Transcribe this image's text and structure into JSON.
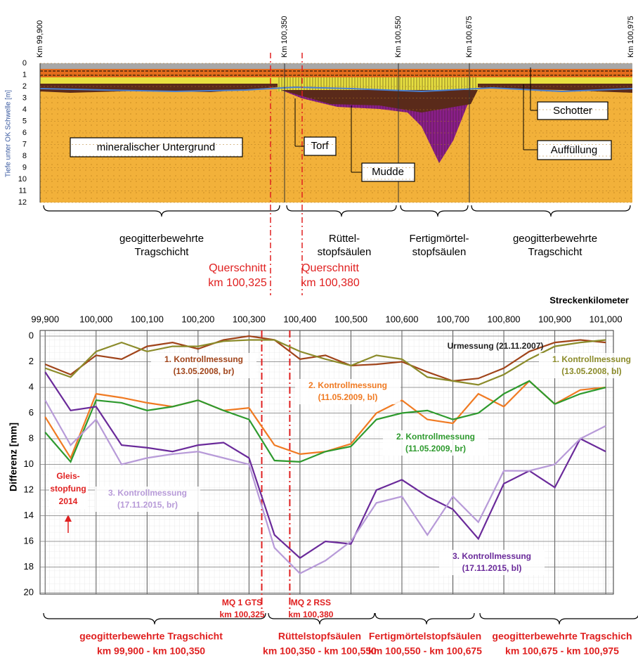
{
  "profile": {
    "km_labels": [
      "Km 99,900",
      "Km 100,350",
      "Km 100,550",
      "Km 100,675",
      "Km 100,975"
    ],
    "y_title": "Tiefe unter OK Schwelle [m]",
    "depth_ticks": [
      0,
      1,
      2,
      3,
      4,
      5,
      6,
      7,
      8,
      9,
      10,
      11,
      12
    ],
    "layers": [
      "mineralischer Untergrund",
      "Torf",
      "Mudde",
      "Schotter",
      "Auffüllung"
    ],
    "sections": [
      [
        "geogitterbewehrte",
        "Tragschicht"
      ],
      [
        "Rüttel-",
        "stopfsäulen"
      ],
      [
        "Fertigmörtel-",
        "stopfsäulen"
      ],
      [
        "geogitterbewehrte",
        "Tragschicht"
      ]
    ],
    "cross_sections": [
      [
        "Querschnitt",
        "km 100,325"
      ],
      [
        "Querschnitt",
        "km 100,380"
      ]
    ]
  },
  "chart_data": {
    "type": "line",
    "x_title": "Streckenkilometer",
    "y_title": "Differenz [mm]",
    "x": [
      99.9,
      99.95,
      100.0,
      100.05,
      100.1,
      100.15,
      100.2,
      100.25,
      100.3,
      100.35,
      100.4,
      100.45,
      100.5,
      100.55,
      100.6,
      100.65,
      100.7,
      100.75,
      100.8,
      100.85,
      100.9,
      100.95,
      101.0
    ],
    "xlim": [
      99.89,
      101.015
    ],
    "xticks": [
      {
        "value": 99.9,
        "label": "99,900"
      },
      {
        "value": 100.0,
        "label": "100,000"
      },
      {
        "value": 100.1,
        "label": "100,100"
      },
      {
        "value": 100.2,
        "label": "100,200"
      },
      {
        "value": 100.3,
        "label": "100,300"
      },
      {
        "value": 100.4,
        "label": "100,400"
      },
      {
        "value": 100.5,
        "label": "100,500"
      },
      {
        "value": 100.6,
        "label": "100,600"
      },
      {
        "value": 100.7,
        "label": "100,700"
      },
      {
        "value": 100.8,
        "label": "100,800"
      },
      {
        "value": 100.9,
        "label": "100,900"
      },
      {
        "value": 101.0,
        "label": "101,000"
      }
    ],
    "ylim": [
      0,
      20
    ],
    "yticks": [
      0,
      2,
      4,
      6,
      8,
      10,
      12,
      14,
      16,
      18,
      20
    ],
    "y_inverted": true,
    "grid": true,
    "series": [
      {
        "label": [
          "1. Kontrollmessung",
          "(13.05.2008, br)"
        ],
        "color": "#a0441a",
        "values": [
          2.2,
          3.0,
          1.5,
          1.8,
          0.8,
          0.5,
          1.0,
          0.3,
          0,
          0.3,
          1.8,
          1.5,
          2.3,
          2.2,
          2.0,
          2.8,
          3.5,
          3.3,
          2.5,
          1.2,
          0.5,
          0.3,
          0.5
        ]
      },
      {
        "label": [
          "1. Kontrollmessung",
          "(13.05.2008, bl)"
        ],
        "color": "#8b8b2a",
        "values": [
          2.5,
          3.2,
          1.2,
          0.5,
          1.2,
          0.8,
          0.8,
          0.4,
          0.3,
          0.3,
          1.2,
          1.8,
          2.3,
          1.5,
          1.8,
          3.2,
          3.5,
          3.8,
          3.0,
          1.8,
          0.8,
          0.5,
          0.3
        ]
      },
      {
        "label": [
          "2. Kontrollmessung",
          "(11.05.2009, bl)"
        ],
        "color": "#f07a22",
        "values": [
          6.3,
          9.5,
          4.5,
          4.8,
          5.2,
          5.5,
          5.0,
          5.8,
          5.6,
          8.5,
          9.2,
          9.0,
          8.4,
          6.0,
          5.0,
          6.5,
          6.8,
          4.5,
          5.5,
          3.5,
          5.3,
          4.2,
          4.0
        ]
      },
      {
        "label": [
          "2. Kontrollmessung",
          "(11.05.2009, br)"
        ],
        "color": "#2e9a2e",
        "values": [
          7.5,
          9.8,
          5.0,
          5.2,
          5.8,
          5.5,
          5.0,
          5.8,
          6.5,
          9.7,
          9.8,
          9.0,
          8.6,
          6.5,
          6.0,
          5.8,
          6.5,
          6.0,
          4.5,
          3.5,
          5.3,
          4.5,
          4.0
        ]
      },
      {
        "label": [
          "3. Kontrollmessung",
          "(17.11.2015, bl)"
        ],
        "color": "#6a2a9a",
        "values": [
          2.8,
          5.8,
          5.5,
          8.5,
          8.7,
          9.0,
          8.5,
          8.3,
          9.5,
          15.5,
          17.3,
          16.0,
          16.2,
          12.0,
          11.2,
          12.5,
          13.5,
          15.8,
          11.5,
          10.5,
          11.8,
          8.0,
          9.0
        ]
      },
      {
        "label": [
          "3. Kontrollmessung",
          "(17.11.2015, br)"
        ],
        "color": "#b79ad8",
        "values": [
          5.0,
          8.5,
          6.5,
          10.0,
          9.5,
          9.2,
          9.0,
          9.5,
          10.0,
          16.5,
          18.5,
          17.5,
          16.0,
          13.0,
          12.5,
          15.5,
          12.5,
          14.5,
          10.5,
          10.5,
          10.0,
          8.0,
          7.0
        ]
      }
    ],
    "annotations": [
      [
        "Urmessung (21.11.2007)"
      ],
      [
        "Gleis-",
        "stopfung",
        "2014"
      ]
    ],
    "markers": [
      {
        "x": 100.325,
        "lines": [
          "MQ 1 GTS",
          "km 100,325"
        ]
      },
      {
        "x": 100.38,
        "lines": [
          "MQ 2 RSS",
          "km 100,380"
        ]
      }
    ],
    "sections": [
      [
        "geogitterbewehrte Tragschicht",
        "km 99,900 - km 100,350"
      ],
      [
        "Rüttelstopfsäulen",
        "km 100,350 - km 100,550"
      ],
      [
        "Fertigmörtelstopfsäulen",
        "km 100,550 - km 100,675"
      ],
      [
        "geogitterbewehrte Tragschich",
        "km 100,675 - km 100,975"
      ]
    ]
  }
}
